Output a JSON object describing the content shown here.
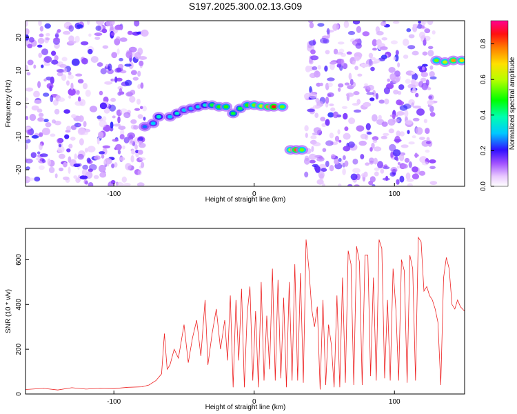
{
  "figure_title": "S197.2025.300.02.13.G09",
  "chart_data": [
    {
      "type": "heatmap",
      "title": "S197.2025.300.02.13.G09",
      "xlabel": "Height of straight line (km)",
      "ylabel": "Frequency (Hz)",
      "xlim": [
        -163,
        150
      ],
      "ylim": [
        -25,
        25
      ],
      "xticks": [
        -100,
        0,
        100
      ],
      "yticks": [
        -20,
        -10,
        0,
        10,
        20
      ],
      "colorbar": {
        "label": "Normalized spectral amplitude",
        "range": [
          0,
          0.93
        ],
        "ticks": [
          0.0,
          0.2,
          0.4,
          0.6,
          0.8
        ]
      },
      "noise_regions_km": [
        [
          -163,
          -78
        ],
        [
          37,
          128
        ]
      ],
      "signal_track": [
        {
          "x": -78,
          "y": -7,
          "amp": 0.25
        },
        {
          "x": -72,
          "y": -6,
          "amp": 0.3
        },
        {
          "x": -68,
          "y": -4,
          "amp": 0.35
        },
        {
          "x": -60,
          "y": -4,
          "amp": 0.3
        },
        {
          "x": -55,
          "y": -3,
          "amp": 0.35
        },
        {
          "x": -50,
          "y": -2,
          "amp": 0.3
        },
        {
          "x": -45,
          "y": -1.5,
          "amp": 0.3
        },
        {
          "x": -40,
          "y": -1,
          "amp": 0.32
        },
        {
          "x": -35,
          "y": -0.5,
          "amp": 0.35
        },
        {
          "x": -30,
          "y": -0.5,
          "amp": 0.45
        },
        {
          "x": -25,
          "y": -1,
          "amp": 0.5
        },
        {
          "x": -20,
          "y": -1,
          "amp": 0.5
        },
        {
          "x": -15,
          "y": -3,
          "amp": 0.45
        },
        {
          "x": -10,
          "y": -1.5,
          "amp": 0.45
        },
        {
          "x": -5,
          "y": -0.5,
          "amp": 0.5
        },
        {
          "x": 0,
          "y": -0.5,
          "amp": 0.55
        },
        {
          "x": 5,
          "y": -0.8,
          "amp": 0.6
        },
        {
          "x": 10,
          "y": -1,
          "amp": 0.75
        },
        {
          "x": 14,
          "y": -1,
          "amp": 0.85
        },
        {
          "x": 20,
          "y": -1,
          "amp": 0.55
        },
        {
          "x": 26,
          "y": -14,
          "amp": 0.6
        },
        {
          "x": 30,
          "y": -14,
          "amp": 0.8
        },
        {
          "x": 34,
          "y": -14,
          "amp": 0.55
        },
        {
          "x": 130,
          "y": 13,
          "amp": 0.55
        },
        {
          "x": 136,
          "y": 12.5,
          "amp": 0.6
        },
        {
          "x": 142,
          "y": 13,
          "amp": 0.75
        },
        {
          "x": 148,
          "y": 13,
          "amp": 0.65
        }
      ]
    },
    {
      "type": "line",
      "xlabel": "Height of straight line (km)",
      "ylabel": "SNR (10 * v/v)",
      "xlim": [
        -163,
        150
      ],
      "ylim": [
        0,
        740
      ],
      "xticks": [
        -100,
        0,
        100
      ],
      "yticks": [
        0,
        200,
        400,
        600
      ],
      "series": [
        {
          "name": "SNR",
          "color": "#ee2222",
          "x": [
            -163,
            -150,
            -140,
            -130,
            -120,
            -110,
            -100,
            -90,
            -80,
            -75,
            -70,
            -66,
            -64,
            -62,
            -60,
            -57,
            -54,
            -50,
            -47,
            -44,
            -41,
            -38,
            -35,
            -33,
            -30,
            -27,
            -24,
            -21,
            -19,
            -17,
            -15,
            -13,
            -11,
            -9,
            -7,
            -5,
            -3,
            -1,
            1,
            3,
            5,
            7,
            9,
            11,
            13,
            15,
            17,
            19,
            21,
            23,
            25,
            27,
            29,
            31,
            33,
            35,
            37,
            39,
            41,
            43,
            45,
            47,
            49,
            51,
            53,
            55,
            57,
            59,
            61,
            63,
            65,
            67,
            69,
            71,
            73,
            75,
            77,
            79,
            81,
            83,
            85,
            87,
            89,
            91,
            93,
            95,
            97,
            99,
            101,
            103,
            105,
            107,
            109,
            111,
            113,
            115,
            117,
            119,
            121,
            123,
            125,
            127,
            129,
            131,
            133,
            135,
            137,
            139,
            141,
            143,
            145,
            147,
            150
          ],
          "values": [
            20,
            25,
            18,
            28,
            22,
            25,
            24,
            30,
            32,
            40,
            60,
            90,
            270,
            110,
            130,
            200,
            160,
            310,
            140,
            250,
            330,
            170,
            420,
            130,
            270,
            380,
            200,
            330,
            150,
            440,
            30,
            420,
            150,
            470,
            30,
            360,
            480,
            60,
            370,
            30,
            500,
            60,
            350,
            110,
            560,
            60,
            510,
            70,
            430,
            30,
            500,
            60,
            580,
            60,
            540,
            50,
            690,
            560,
            380,
            300,
            390,
            20,
            420,
            40,
            310,
            220,
            30,
            440,
            30,
            520,
            50,
            640,
            580,
            40,
            660,
            590,
            40,
            620,
            620,
            80,
            520,
            60,
            690,
            650,
            70,
            420,
            60,
            560,
            380,
            60,
            600,
            550,
            50,
            620,
            560,
            60,
            700,
            680,
            460,
            480,
            440,
            420,
            380,
            320,
            40,
            520,
            610,
            560,
            400,
            380,
            420,
            390,
            370
          ]
        }
      ]
    }
  ]
}
